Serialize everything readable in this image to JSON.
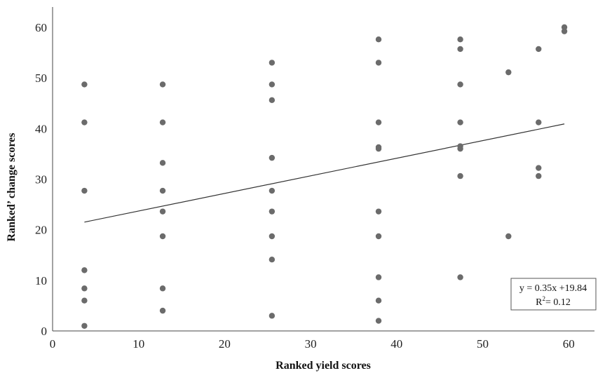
{
  "chart_data": {
    "type": "scatter",
    "title": "",
    "xlabel": "Ranked yield scores",
    "ylabel": "Ranked’ change scores",
    "xlim": [
      0,
      63
    ],
    "ylim": [
      0,
      64
    ],
    "xticks": [
      0,
      10,
      20,
      30,
      40,
      50,
      60
    ],
    "yticks": [
      0,
      10,
      20,
      30,
      40,
      50,
      60
    ],
    "grid": false,
    "point_color": "#6b6b6b",
    "line_color": "#333333",
    "points": [
      [
        3.7,
        48.7
      ],
      [
        3.7,
        41.2
      ],
      [
        3.7,
        27.7
      ],
      [
        3.7,
        12.0
      ],
      [
        3.7,
        8.4
      ],
      [
        3.7,
        6.0
      ],
      [
        3.7,
        1.0
      ],
      [
        12.8,
        48.7
      ],
      [
        12.8,
        41.2
      ],
      [
        12.8,
        33.2
      ],
      [
        12.8,
        27.7
      ],
      [
        12.8,
        23.6
      ],
      [
        12.8,
        18.7
      ],
      [
        12.8,
        8.4
      ],
      [
        12.8,
        4.0
      ],
      [
        25.5,
        53.0
      ],
      [
        25.5,
        48.7
      ],
      [
        25.5,
        45.6
      ],
      [
        25.5,
        34.2
      ],
      [
        25.5,
        27.7
      ],
      [
        25.5,
        23.6
      ],
      [
        25.5,
        18.7
      ],
      [
        25.5,
        14.1
      ],
      [
        25.5,
        3.0
      ],
      [
        37.9,
        57.6
      ],
      [
        37.9,
        53.0
      ],
      [
        37.9,
        41.2
      ],
      [
        37.9,
        36.3
      ],
      [
        37.9,
        36.0
      ],
      [
        37.9,
        23.6
      ],
      [
        37.9,
        18.7
      ],
      [
        37.9,
        10.6
      ],
      [
        37.9,
        6.0
      ],
      [
        37.9,
        2.0
      ],
      [
        47.4,
        57.6
      ],
      [
        47.4,
        55.7
      ],
      [
        47.4,
        48.7
      ],
      [
        47.4,
        41.2
      ],
      [
        47.4,
        36.5
      ],
      [
        47.4,
        36.0
      ],
      [
        47.4,
        30.6
      ],
      [
        47.4,
        10.6
      ],
      [
        53.0,
        51.1
      ],
      [
        53.0,
        18.7
      ],
      [
        56.5,
        55.7
      ],
      [
        56.5,
        41.2
      ],
      [
        56.5,
        32.2
      ],
      [
        56.5,
        30.6
      ],
      [
        59.5,
        60.0
      ],
      [
        59.5,
        59.2
      ]
    ],
    "trendline": {
      "x": [
        3.7,
        59.5
      ],
      "y": [
        21.5,
        40.9
      ]
    },
    "equation": {
      "line1": "y = 0.35x +19.84",
      "r2_base": "R",
      "r2_exp": "2",
      "r2_value": "= 0.12"
    }
  }
}
